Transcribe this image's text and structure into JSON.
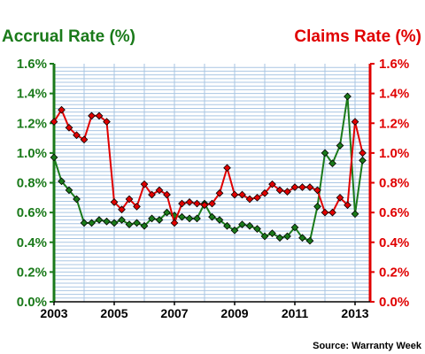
{
  "chart_data": {
    "type": "line",
    "source": "Source: Warranty Week",
    "x_ticks": [
      "2003",
      "2005",
      "2007",
      "2009",
      "2011",
      "2013"
    ],
    "x_range": [
      2003.0,
      2013.5
    ],
    "y_ticks": [
      "0.0%",
      "0.2%",
      "0.4%",
      "0.6%",
      "0.8%",
      "1.0%",
      "1.2%",
      "1.4%",
      "1.6%"
    ],
    "ylim": [
      0,
      1.6
    ],
    "grid": true,
    "colors": {
      "accrual": "#1a7a1a",
      "claims": "#e00000",
      "grid": "#a9c6e3",
      "plot_bg": "#ffffff"
    },
    "series": [
      {
        "name": "Accrual Rate (%)",
        "axis": "left",
        "color": "#1a7a1a",
        "x": [
          2003.0,
          2003.25,
          2003.5,
          2003.75,
          2004.0,
          2004.25,
          2004.5,
          2004.75,
          2005.0,
          2005.25,
          2005.5,
          2005.75,
          2006.0,
          2006.25,
          2006.5,
          2006.75,
          2007.0,
          2007.25,
          2007.5,
          2007.75,
          2008.0,
          2008.25,
          2008.5,
          2008.75,
          2009.0,
          2009.25,
          2009.5,
          2009.75,
          2010.0,
          2010.25,
          2010.5,
          2010.75,
          2011.0,
          2011.25,
          2011.5,
          2011.75,
          2012.0,
          2012.25,
          2012.5,
          2012.75,
          2013.0,
          2013.25
        ],
        "values": [
          0.97,
          0.81,
          0.75,
          0.69,
          0.53,
          0.53,
          0.55,
          0.54,
          0.53,
          0.55,
          0.52,
          0.53,
          0.51,
          0.56,
          0.55,
          0.6,
          0.58,
          0.57,
          0.56,
          0.56,
          0.66,
          0.57,
          0.55,
          0.51,
          0.48,
          0.52,
          0.51,
          0.49,
          0.44,
          0.46,
          0.43,
          0.44,
          0.5,
          0.43,
          0.41,
          0.64,
          1.0,
          0.93,
          1.05,
          1.38,
          0.59,
          0.95
        ]
      },
      {
        "name": "Claims Rate (%)",
        "axis": "right",
        "color": "#e00000",
        "x": [
          2003.0,
          2003.25,
          2003.5,
          2003.75,
          2004.0,
          2004.25,
          2004.5,
          2004.75,
          2005.0,
          2005.25,
          2005.5,
          2005.75,
          2006.0,
          2006.25,
          2006.5,
          2006.75,
          2007.0,
          2007.25,
          2007.5,
          2007.75,
          2008.0,
          2008.25,
          2008.5,
          2008.75,
          2009.0,
          2009.25,
          2009.5,
          2009.75,
          2010.0,
          2010.25,
          2010.5,
          2010.75,
          2011.0,
          2011.25,
          2011.5,
          2011.75,
          2012.0,
          2012.25,
          2012.5,
          2012.75,
          2013.0,
          2013.25
        ],
        "values": [
          1.21,
          1.29,
          1.17,
          1.12,
          1.09,
          1.25,
          1.25,
          1.21,
          0.67,
          0.62,
          0.69,
          0.64,
          0.79,
          0.72,
          0.75,
          0.72,
          0.53,
          0.66,
          0.67,
          0.66,
          0.65,
          0.66,
          0.73,
          0.9,
          0.72,
          0.72,
          0.69,
          0.7,
          0.73,
          0.79,
          0.75,
          0.74,
          0.77,
          0.77,
          0.77,
          0.75,
          0.6,
          0.6,
          0.7,
          0.65,
          1.21,
          1.0
        ]
      }
    ]
  },
  "labels": {
    "left_axis_title": "Accrual Rate (%)",
    "right_axis_title": "Claims Rate (%)"
  }
}
